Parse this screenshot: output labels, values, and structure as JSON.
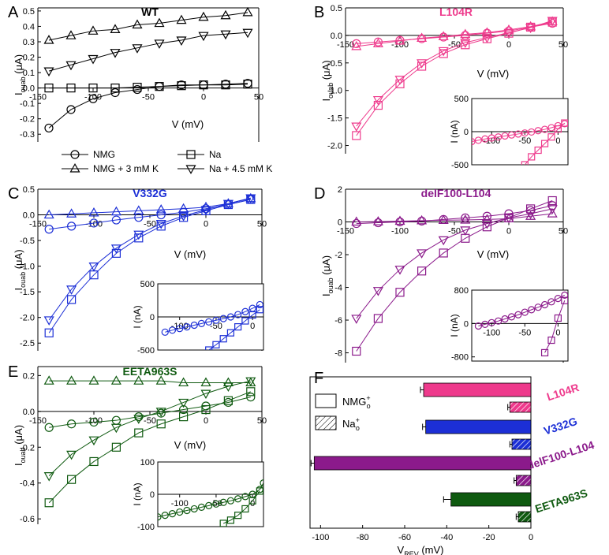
{
  "panels": [
    {
      "letter": "A",
      "title": "WT",
      "color": "#000000",
      "xlabel": "V (mV)",
      "ylabel_main": "I",
      "ylabel_sub": "ouab",
      "ylabel_unit": "(μA)",
      "xlim": [
        -150,
        50
      ],
      "ylim": [
        -0.35,
        0.52
      ],
      "xticks": [
        -150,
        -100,
        -50,
        0,
        50
      ],
      "yticks": [
        -0.3,
        -0.2,
        -0.1,
        0.0,
        0.1,
        0.2,
        0.3,
        0.4,
        0.5
      ],
      "ytick_labels": [
        "-0.3",
        "-0.2",
        "-0.1",
        "0.0",
        "0.1",
        "0.2",
        "0.3",
        "0.4",
        "0.5"
      ],
      "legend": [
        {
          "name": "NMG",
          "marker": "circle"
        },
        {
          "name": "Na",
          "marker": "square"
        },
        {
          "name": "NMG + 3 mM K",
          "marker": "triangle-up"
        },
        {
          "name": "Na + 4.5 mM K",
          "marker": "triangle-down"
        }
      ],
      "series": [
        {
          "marker": "circle",
          "x": [
            -140,
            -120,
            -100,
            -80,
            -60,
            -40,
            -20,
            0,
            20,
            40
          ],
          "y": [
            -0.26,
            -0.14,
            -0.07,
            -0.03,
            -0.01,
            0.01,
            0.02,
            0.02,
            0.025,
            0.03
          ]
        },
        {
          "marker": "square",
          "x": [
            -140,
            -120,
            -100,
            -80,
            -60,
            -40,
            -20,
            0,
            20,
            40
          ],
          "y": [
            0.0,
            0.0,
            0.0,
            0.0,
            0.005,
            0.01,
            0.015,
            0.02,
            0.02,
            0.025
          ]
        },
        {
          "marker": "triangle-up",
          "x": [
            -140,
            -120,
            -100,
            -80,
            -60,
            -40,
            -20,
            0,
            20,
            40
          ],
          "y": [
            0.31,
            0.34,
            0.37,
            0.38,
            0.41,
            0.42,
            0.44,
            0.46,
            0.47,
            0.49
          ]
        },
        {
          "marker": "triangle-down",
          "x": [
            -140,
            -120,
            -100,
            -80,
            -60,
            -40,
            -20,
            0,
            20,
            40
          ],
          "y": [
            0.11,
            0.15,
            0.19,
            0.23,
            0.26,
            0.29,
            0.31,
            0.34,
            0.35,
            0.36
          ]
        }
      ]
    },
    {
      "letter": "B",
      "title": "L104R",
      "color": "#ee3a8c",
      "xlabel": "V (mV)",
      "ylabel_main": "I",
      "ylabel_sub": "ouab",
      "ylabel_unit": "(μA)",
      "xlim": [
        -150,
        50
      ],
      "ylim": [
        -2.15,
        0.5
      ],
      "xticks": [
        -150,
        -100,
        -50,
        0,
        50
      ],
      "yticks": [
        -2.0,
        -1.5,
        -1.0,
        -0.5,
        0.0,
        0.5
      ],
      "ytick_labels": [
        "-2.0",
        "-1.5",
        "-1.0",
        "-0.5",
        "0.0",
        "0.5"
      ],
      "series": [
        {
          "marker": "circle",
          "x": [
            -140,
            -120,
            -100,
            -80,
            -60,
            -40,
            -20,
            0,
            20,
            40
          ],
          "y": [
            -0.15,
            -0.12,
            -0.09,
            -0.06,
            -0.03,
            0.0,
            0.04,
            0.08,
            0.15,
            0.22
          ]
        },
        {
          "marker": "square",
          "x": [
            -140,
            -120,
            -100,
            -80,
            -60,
            -40,
            -20,
            0,
            20,
            40
          ],
          "y": [
            -1.82,
            -1.27,
            -0.88,
            -0.56,
            -0.33,
            -0.17,
            -0.06,
            0.04,
            0.15,
            0.24
          ]
        },
        {
          "marker": "triangle-up",
          "x": [
            -140,
            -120,
            -100,
            -80,
            -60,
            -40,
            -20,
            0,
            20,
            40
          ],
          "y": [
            -0.2,
            -0.15,
            -0.1,
            -0.05,
            -0.02,
            0.02,
            0.05,
            0.1,
            0.16,
            0.25
          ]
        },
        {
          "marker": "triangle-down",
          "x": [
            -140,
            -120,
            -100,
            -80,
            -60,
            -40,
            -20,
            0,
            20,
            40
          ],
          "y": [
            -1.65,
            -1.17,
            -0.8,
            -0.5,
            -0.28,
            -0.13,
            -0.04,
            0.05,
            0.14,
            0.27
          ]
        }
      ],
      "inset": {
        "ylabel": "I (nA)",
        "xlim": [
          -130,
          15
        ],
        "ylim": [
          -500,
          500
        ],
        "xticks": [
          -100,
          -50,
          0
        ],
        "yticks": [
          -500,
          0,
          500
        ],
        "ytick_labels": [
          "-500",
          "0",
          "500"
        ],
        "series": [
          {
            "marker": "circle",
            "x": [
              -130,
              -120,
              -110,
              -100,
              -90,
              -80,
              -70,
              -60,
              -50,
              -40,
              -30,
              -20,
              -10,
              0,
              10
            ],
            "y": [
              -150,
              -130,
              -110,
              -95,
              -80,
              -65,
              -50,
              -35,
              -20,
              -5,
              15,
              35,
              60,
              90,
              120
            ]
          },
          {
            "marker": "square",
            "x": [
              -50,
              -40,
              -30,
              -20,
              -10,
              0,
              10
            ],
            "y": [
              -500,
              -380,
              -280,
              -180,
              -80,
              40,
              130
            ]
          }
        ]
      }
    },
    {
      "letter": "C",
      "title": "V332G",
      "color": "#1c2fd6",
      "xlabel": "V (mV)",
      "ylabel_main": "I",
      "ylabel_sub": "ouab",
      "ylabel_unit": "(μA)",
      "xlim": [
        -150,
        50
      ],
      "ylim": [
        -2.65,
        0.5
      ],
      "xticks": [
        -150,
        -100,
        -50,
        0,
        50
      ],
      "yticks": [
        -2.5,
        -2.0,
        -1.5,
        -1.0,
        -0.5,
        0.0,
        0.5
      ],
      "ytick_labels": [
        "-2.5",
        "-2.0",
        "-1.5",
        "-1.0",
        "-0.5",
        "0.0",
        "0.5"
      ],
      "series": [
        {
          "marker": "circle",
          "x": [
            -140,
            -120,
            -100,
            -80,
            -60,
            -40,
            -20,
            0,
            20,
            40
          ],
          "y": [
            -0.28,
            -0.22,
            -0.16,
            -0.1,
            -0.05,
            0.0,
            0.05,
            0.12,
            0.2,
            0.3
          ]
        },
        {
          "marker": "square",
          "x": [
            -140,
            -120,
            -100,
            -80,
            -60,
            -40,
            -20,
            0,
            20,
            40
          ],
          "y": [
            -2.3,
            -1.65,
            -1.17,
            -0.75,
            -0.45,
            -0.22,
            -0.05,
            0.08,
            0.2,
            0.3
          ]
        },
        {
          "marker": "triangle-up",
          "x": [
            -140,
            -120,
            -100,
            -80,
            -60,
            -40,
            -20,
            0,
            20,
            40
          ],
          "y": [
            0.0,
            0.02,
            0.04,
            0.06,
            0.08,
            0.1,
            0.12,
            0.15,
            0.22,
            0.32
          ]
        },
        {
          "marker": "triangle-down",
          "x": [
            -140,
            -120,
            -100,
            -80,
            -60,
            -40,
            -20,
            0,
            20,
            40
          ],
          "y": [
            -2.05,
            -1.45,
            -1.0,
            -0.65,
            -0.38,
            -0.17,
            -0.02,
            0.1,
            0.22,
            0.33
          ]
        }
      ],
      "inset": {
        "ylabel": "I (nA)",
        "xlim": [
          -130,
          15
        ],
        "ylim": [
          -500,
          500
        ],
        "xticks": [
          -100,
          -50,
          0
        ],
        "yticks": [
          -500,
          0,
          500
        ],
        "ytick_labels": [
          "-500",
          "0",
          "500"
        ],
        "series": [
          {
            "marker": "circle",
            "x": [
              -120,
              -110,
              -100,
              -90,
              -80,
              -70,
              -60,
              -50,
              -40,
              -30,
              -20,
              -10,
              0,
              10
            ],
            "y": [
              -230,
              -200,
              -175,
              -150,
              -125,
              -100,
              -75,
              -50,
              -25,
              0,
              35,
              80,
              130,
              185
            ]
          },
          {
            "marker": "square",
            "x": [
              -60,
              -50,
              -40,
              -30,
              -20,
              -10,
              0,
              10
            ],
            "y": [
              -500,
              -420,
              -330,
              -240,
              -150,
              -60,
              30,
              110
            ]
          }
        ]
      }
    },
    {
      "letter": "D",
      "title": "delF100-L104",
      "color": "#8b1a8b",
      "xlabel": "V (mV)",
      "ylabel_main": "I",
      "ylabel_sub": "ouab",
      "ylabel_unit": "(μA)",
      "xlim": [
        -150,
        50
      ],
      "ylim": [
        -8.6,
        2.0
      ],
      "xticks": [
        -150,
        -100,
        -50,
        0,
        50
      ],
      "yticks": [
        -8,
        -6,
        -4,
        -2,
        0,
        2
      ],
      "ytick_labels": [
        "-8",
        "-6",
        "-4",
        "-2",
        "0",
        "2"
      ],
      "series": [
        {
          "marker": "circle",
          "x": [
            -140,
            -120,
            -100,
            -80,
            -60,
            -40,
            -20,
            0,
            20,
            40
          ],
          "y": [
            -0.1,
            -0.05,
            0.0,
            0.05,
            0.15,
            0.25,
            0.35,
            0.5,
            0.7,
            1.0
          ]
        },
        {
          "marker": "square",
          "x": [
            -140,
            -120,
            -100,
            -80,
            -60,
            -40,
            -20,
            0,
            20,
            40
          ],
          "y": [
            -7.9,
            -5.9,
            -4.3,
            -3.0,
            -1.9,
            -1.0,
            -0.3,
            0.25,
            0.8,
            1.3
          ]
        },
        {
          "marker": "triangle-up",
          "x": [
            -140,
            -120,
            -100,
            -80,
            -60,
            -40,
            -20,
            0,
            20,
            40
          ],
          "y": [
            0.0,
            0.02,
            0.05,
            0.08,
            0.1,
            0.12,
            0.15,
            0.2,
            0.35,
            0.5
          ]
        },
        {
          "marker": "triangle-down",
          "x": [
            -140,
            -120,
            -100,
            -80,
            -60,
            -40,
            -20,
            0,
            20,
            40
          ],
          "y": [
            -5.9,
            -4.2,
            -2.9,
            -1.9,
            -1.1,
            -0.5,
            -0.1,
            0.25,
            0.5,
            0.8
          ]
        }
      ],
      "inset": {
        "ylabel": "I (nA)",
        "xlim": [
          -130,
          15
        ],
        "ylim": [
          -900,
          800
        ],
        "xticks": [
          -100,
          -50,
          0
        ],
        "yticks": [
          -800,
          0,
          800
        ],
        "ytick_labels": [
          "-800",
          "0",
          "800"
        ],
        "series": [
          {
            "marker": "circle",
            "x": [
              -120,
              -110,
              -100,
              -90,
              -80,
              -70,
              -60,
              -50,
              -40,
              -30,
              -20,
              -10,
              0,
              10
            ],
            "y": [
              -60,
              -20,
              20,
              60,
              110,
              160,
              210,
              270,
              330,
              390,
              450,
              520,
              600,
              680
            ]
          },
          {
            "marker": "square",
            "x": [
              -20,
              -10,
              0,
              10
            ],
            "y": [
              -700,
              -400,
              130,
              550
            ]
          }
        ]
      }
    },
    {
      "letter": "E",
      "title": "EETA963S",
      "color": "#0f5a10",
      "xlabel": "V (mV)",
      "ylabel_main": "I",
      "ylabel_sub": "ouab",
      "ylabel_unit": "(μA)",
      "xlim": [
        -150,
        50
      ],
      "ylim": [
        -0.63,
        0.25
      ],
      "xticks": [
        -150,
        -100,
        -50,
        0,
        50
      ],
      "yticks": [
        -0.6,
        -0.4,
        -0.2,
        0.0,
        0.2
      ],
      "ytick_labels": [
        "-0.6",
        "-0.4",
        "-0.2",
        "0.0",
        "0.2"
      ],
      "series": [
        {
          "marker": "circle",
          "x": [
            -140,
            -120,
            -100,
            -80,
            -60,
            -40,
            -20,
            0,
            20,
            40
          ],
          "y": [
            -0.09,
            -0.07,
            -0.06,
            -0.05,
            -0.03,
            -0.01,
            0.01,
            0.03,
            0.05,
            0.08
          ]
        },
        {
          "marker": "square",
          "x": [
            -140,
            -120,
            -100,
            -80,
            -60,
            -40,
            -20,
            0,
            20,
            40
          ],
          "y": [
            -0.51,
            -0.38,
            -0.28,
            -0.2,
            -0.12,
            -0.07,
            -0.03,
            0.01,
            0.06,
            0.11
          ]
        },
        {
          "marker": "triangle-up",
          "x": [
            -140,
            -120,
            -100,
            -80,
            -60,
            -40,
            -20,
            0,
            20,
            40
          ],
          "y": [
            0.17,
            0.17,
            0.17,
            0.17,
            0.17,
            0.17,
            0.16,
            0.16,
            0.16,
            0.16
          ]
        },
        {
          "marker": "triangle-down",
          "x": [
            -140,
            -120,
            -100,
            -80,
            -60,
            -40,
            -20,
            0,
            20,
            40
          ],
          "y": [
            -0.36,
            -0.24,
            -0.16,
            -0.09,
            -0.04,
            0.0,
            0.05,
            0.1,
            0.14,
            0.17
          ]
        }
      ],
      "inset": {
        "ylabel": "I (nA)",
        "xlim": [
          -130,
          15
        ],
        "ylim": [
          -100,
          100
        ],
        "xticks": [
          -100,
          -50,
          0
        ],
        "yticks": [
          -100,
          0,
          100
        ],
        "ytick_labels": [
          "-100",
          "0",
          "100"
        ],
        "series": [
          {
            "marker": "circle",
            "x": [
              -130,
              -120,
              -110,
              -100,
              -90,
              -80,
              -70,
              -60,
              -50,
              -40,
              -30,
              -20,
              -10,
              0,
              10,
              15
            ],
            "y": [
              -70,
              -65,
              -60,
              -55,
              -50,
              -45,
              -40,
              -35,
              -30,
              -25,
              -20,
              -14,
              -7,
              0,
              15,
              35
            ]
          },
          {
            "marker": "square",
            "x": [
              -40,
              -30,
              -20,
              -10,
              0,
              10
            ],
            "y": [
              -90,
              -80,
              -65,
              -45,
              -20,
              10
            ]
          }
        ]
      }
    }
  ],
  "panel_f": {
    "letter": "F",
    "xlabel_main": "V",
    "xlabel_sub": "REV",
    "xlabel_unit": "(mV)",
    "xlim": [
      -105,
      0
    ],
    "xticks": [
      -100,
      -80,
      -60,
      -40,
      -20,
      0
    ],
    "legend": [
      {
        "main": "NMG",
        "sup": "+",
        "sub": "o",
        "pattern": "open"
      },
      {
        "main": "Na",
        "sup": "+",
        "sub": "o",
        "pattern": "hatched"
      }
    ],
    "groups": [
      {
        "label": "L104R",
        "color": "#ee3a8c",
        "nmg": -51,
        "nmg_err": 1.5,
        "na": -10,
        "na_err": 1.0
      },
      {
        "label": "V332G",
        "color": "#1c2fd6",
        "nmg": -50,
        "nmg_err": 1.5,
        "na": -9,
        "na_err": 1.0
      },
      {
        "label": "delF100-L104",
        "color": "#8b1a8b",
        "nmg": -103,
        "nmg_err": 1.5,
        "na": -7,
        "na_err": 1.0
      },
      {
        "label": "EETA963S",
        "color": "#0f5a10",
        "nmg": -38,
        "nmg_err": 3.5,
        "na": -6,
        "na_err": 1.0
      }
    ]
  }
}
